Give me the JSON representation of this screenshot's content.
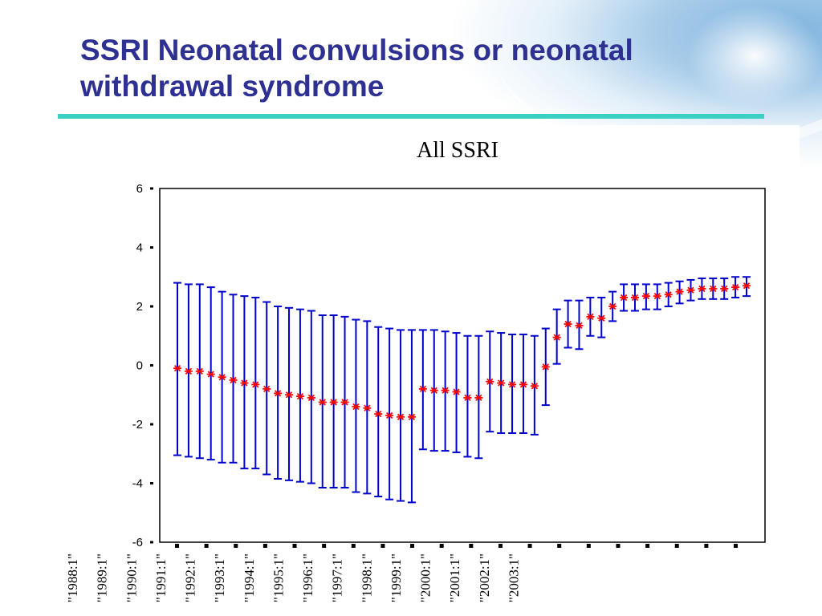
{
  "slide": {
    "title_line1": "SSRI Neonatal convulsions or neonatal",
    "title_line2": "withdrawal syndrome"
  },
  "colors": {
    "title": "#2e3192",
    "rule": "#3ad0c2",
    "error_bars": "#0000cc",
    "markers": "#ff0000"
  },
  "chart_data": {
    "type": "scatter",
    "title": "All SSRI",
    "xlabel": "",
    "ylabel": "",
    "ylim": [
      -6,
      6
    ],
    "yticks": [
      6,
      4,
      2,
      0,
      -2,
      -4,
      -6
    ],
    "marker": "asterisk",
    "error_bars": true,
    "grid": false,
    "x_tick_labels": [
      "\"1988:1\"",
      "\"1989:1\"",
      "\"1990:1\"",
      "\"1991:1\"",
      "\"1992:1\"",
      "\"1993:1\"",
      "\"1994:1\"",
      "\"1995:1\"",
      "\"1996:1\"",
      "\"1997:1\"",
      "\"1998:1\"",
      "\"1999:1\"",
      "\"2000:1\"",
      "\"2001:1\"",
      "\"2002:1\"",
      "\"2003:1\"",
      "",
      "",
      "",
      ""
    ],
    "series": [
      {
        "estimate": [
          -0.1,
          -0.2,
          -0.2,
          -0.3,
          -0.4,
          -0.5,
          -0.6,
          -0.65,
          -0.8,
          -0.95,
          -1.0,
          -1.05,
          -1.1,
          -1.25,
          -1.25,
          -1.25,
          -1.4,
          -1.45,
          -1.65,
          -1.7,
          -1.75,
          -1.75,
          -0.8,
          -0.85,
          -0.85,
          -0.9,
          -1.1,
          -1.1,
          -0.55,
          -0.6,
          -0.65,
          -0.65,
          -0.7,
          -0.05,
          0.95,
          1.4,
          1.35,
          1.65,
          1.6,
          2.0,
          2.3,
          2.3,
          2.35,
          2.35,
          2.4,
          2.5,
          2.55,
          2.6,
          2.6,
          2.6,
          2.65,
          2.7
        ],
        "upper": [
          2.8,
          2.75,
          2.75,
          2.65,
          2.5,
          2.4,
          2.35,
          2.3,
          2.15,
          2.0,
          1.95,
          1.9,
          1.85,
          1.7,
          1.7,
          1.65,
          1.55,
          1.5,
          1.3,
          1.25,
          1.2,
          1.2,
          1.2,
          1.2,
          1.15,
          1.1,
          1.0,
          1.0,
          1.15,
          1.1,
          1.05,
          1.05,
          1.0,
          1.25,
          1.9,
          2.2,
          2.2,
          2.3,
          2.3,
          2.5,
          2.75,
          2.75,
          2.75,
          2.75,
          2.8,
          2.85,
          2.9,
          2.95,
          2.95,
          2.95,
          3.0,
          3.0
        ],
        "lower": [
          -3.05,
          -3.1,
          -3.15,
          -3.2,
          -3.3,
          -3.3,
          -3.5,
          -3.5,
          -3.7,
          -3.85,
          -3.9,
          -3.95,
          -4.0,
          -4.15,
          -4.15,
          -4.15,
          -4.3,
          -4.35,
          -4.45,
          -4.55,
          -4.6,
          -4.65,
          -2.85,
          -2.9,
          -2.9,
          -2.95,
          -3.1,
          -3.15,
          -2.25,
          -2.3,
          -2.3,
          -2.3,
          -2.35,
          -1.35,
          0.05,
          0.6,
          0.55,
          1.0,
          0.95,
          1.5,
          1.85,
          1.85,
          1.9,
          1.9,
          2.0,
          2.1,
          2.2,
          2.25,
          2.25,
          2.25,
          2.3,
          2.35
        ]
      }
    ]
  }
}
